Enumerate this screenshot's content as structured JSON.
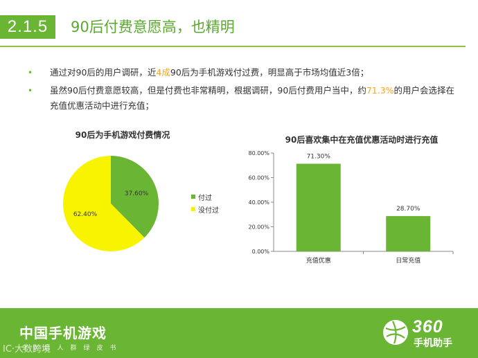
{
  "header": {
    "section_number": "2.1.5",
    "title": "90后付费意愿高，也精明"
  },
  "bullets": [
    {
      "parts": [
        {
          "text": "通过对90后的用户调研，近",
          "hl": false
        },
        {
          "text": "4成",
          "hl": true
        },
        {
          "text": "90后为手机游戏付过费，明显高于市场均值近3倍；",
          "hl": false
        }
      ]
    },
    {
      "parts": [
        {
          "text": "虽然90后付费意愿较高，但是付费也非常精明，根据调研，90后付费用户当中，约",
          "hl": false
        },
        {
          "text": "71.3%",
          "hl": true
        },
        {
          "text": "的用户会选择在充值优惠活动中进行充值；",
          "hl": false
        }
      ]
    }
  ],
  "colors": {
    "brand_green": "#6ab533",
    "highlight": "#f5a623",
    "pie_paid": "#6ab533",
    "pie_unpaid": "#f8f400",
    "bar": "#6ab533"
  },
  "chart_data": [
    {
      "type": "pie",
      "title": "90后为手机游戏付费情况",
      "slices": [
        {
          "label": "付过",
          "value": 37.6,
          "value_label": "37.60%"
        },
        {
          "label": "没付过",
          "value": 62.4,
          "value_label": "62.40%"
        }
      ],
      "legend_position": "right"
    },
    {
      "type": "bar",
      "title": "90后喜欢集中在充值优惠活动时进行充值",
      "categories": [
        "充值优惠",
        "日常充值"
      ],
      "values": [
        71.3,
        28.7
      ],
      "value_labels": [
        "71.30%",
        "28.70%"
      ],
      "ylim": [
        0,
        80
      ],
      "yticks": [
        0,
        20,
        40,
        60,
        80
      ],
      "ytick_labels": [
        "0.00%",
        "20.00%",
        "40.00%",
        "60.00%",
        "80.00%"
      ],
      "grid": false
    }
  ],
  "footer": {
    "title": "中国手机游戏",
    "subtitle": "90后人群绿皮书",
    "watermark": "IC·大数跨境",
    "logo_number": "360",
    "logo_text": "手机助手"
  }
}
